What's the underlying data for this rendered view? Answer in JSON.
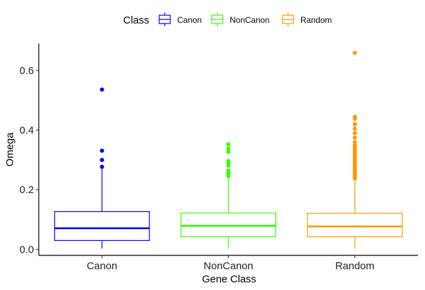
{
  "chart_data": {
    "type": "boxplot",
    "xlabel": "Gene Class",
    "ylabel": "Omega",
    "ylim": [
      -0.02,
      0.69
    ],
    "yticks": [
      0.0,
      0.2,
      0.4,
      0.6
    ],
    "ytick_labels": [
      "0.0",
      "0.2",
      "0.4",
      "0.6"
    ],
    "grid": false,
    "legend": {
      "title": "Class",
      "position": "top",
      "entries": [
        "Canon",
        "NonCanon",
        "Random"
      ]
    },
    "categories": [
      "Canon",
      "NonCanon",
      "Random"
    ],
    "series": [
      {
        "name": "Canon",
        "color": "#0000FF",
        "whisker_low": 0.003,
        "q1": 0.03,
        "median": 0.071,
        "q3": 0.127,
        "whisker_high": 0.272,
        "outliers": [
          0.536,
          0.331,
          0.3,
          0.277
        ]
      },
      {
        "name": "NonCanon",
        "color": "#33FF00",
        "whisker_low": 0.002,
        "q1": 0.043,
        "median": 0.079,
        "q3": 0.122,
        "whisker_high": 0.24,
        "outliers": [
          0.352,
          0.338,
          0.327,
          0.296,
          0.288,
          0.281,
          0.264,
          0.258,
          0.252,
          0.246
        ]
      },
      {
        "name": "Random",
        "color": "#FF9900",
        "whisker_low": 0.002,
        "q1": 0.043,
        "median": 0.077,
        "q3": 0.121,
        "whisker_high": 0.236,
        "outliers": [
          0.659,
          0.445,
          0.438,
          0.42,
          0.405,
          0.39,
          0.375,
          0.36,
          0.35,
          0.343,
          0.336,
          0.33,
          0.323,
          0.317,
          0.311,
          0.305,
          0.3,
          0.294,
          0.288,
          0.282,
          0.277,
          0.271,
          0.266,
          0.261,
          0.256,
          0.251,
          0.246,
          0.242,
          0.238
        ]
      }
    ]
  }
}
